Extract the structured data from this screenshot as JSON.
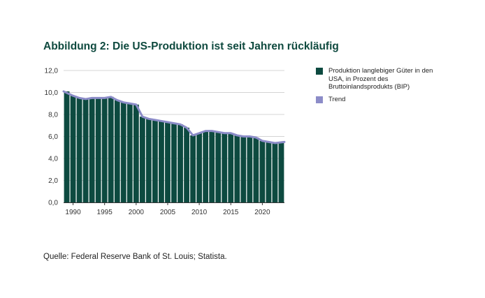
{
  "title": "Abbildung 2: Die US-Produktion ist seit Jahren rückläufig",
  "source": "Quelle: Federal Reserve Bank of St. Louis; Statista.",
  "colors": {
    "bars": "#0d4a40",
    "trend": "#8c8cc8",
    "title": "#0f4a3f",
    "grid": "#d4d4d4"
  },
  "chart_data": {
    "type": "bar",
    "x": [
      1989,
      1990,
      1991,
      1992,
      1993,
      1994,
      1995,
      1996,
      1997,
      1998,
      1999,
      2000,
      2001,
      2002,
      2003,
      2004,
      2005,
      2006,
      2007,
      2008,
      2009,
      2010,
      2011,
      2012,
      2013,
      2014,
      2015,
      2016,
      2017,
      2018,
      2019,
      2020,
      2021,
      2022,
      2023
    ],
    "series": [
      {
        "name": "Produktion langlebiger Güter in den USA, in Prozent des Bruttoinlandsprodukts (BIP)",
        "values": [
          10.1,
          9.7,
          9.5,
          9.4,
          9.5,
          9.5,
          9.5,
          9.6,
          9.3,
          9.1,
          9.0,
          8.9,
          7.8,
          7.6,
          7.5,
          7.4,
          7.3,
          7.2,
          7.1,
          6.8,
          6.1,
          6.3,
          6.5,
          6.5,
          6.4,
          6.3,
          6.3,
          6.1,
          6.0,
          6.0,
          5.9,
          5.6,
          5.5,
          5.4,
          5.5
        ]
      },
      {
        "name": "Trend",
        "values": [
          10.1,
          9.7,
          9.5,
          9.4,
          9.5,
          9.5,
          9.5,
          9.6,
          9.3,
          9.1,
          9.0,
          8.9,
          7.8,
          7.6,
          7.5,
          7.4,
          7.3,
          7.2,
          7.1,
          6.8,
          6.1,
          6.3,
          6.5,
          6.5,
          6.4,
          6.3,
          6.3,
          6.1,
          6.0,
          6.0,
          5.9,
          5.6,
          5.5,
          5.4,
          5.5
        ]
      }
    ],
    "yticks": [
      "0,0",
      "2,0",
      "4,0",
      "6,0",
      "8,0",
      "10,0",
      "12,0"
    ],
    "xticks": [
      "1990",
      "1995",
      "2000",
      "2005",
      "2010",
      "2015",
      "2020"
    ],
    "ylim": [
      0,
      12
    ],
    "xlim": [
      1988.5,
      2023.5
    ],
    "grid": true,
    "legend_position": "right"
  }
}
